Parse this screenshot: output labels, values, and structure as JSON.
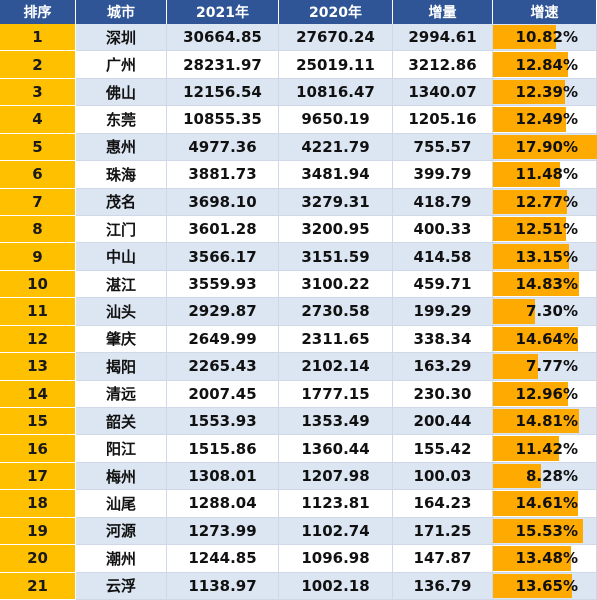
{
  "chart_data": {
    "type": "table",
    "columns": [
      "排序",
      "城市",
      "2021年",
      "2020年",
      "增量",
      "增速"
    ],
    "rows": [
      {
        "rank": "1",
        "city": "深圳",
        "v2021": "30664.85",
        "v2020": "27670.24",
        "increase": "2994.61",
        "growth": "10.82%",
        "growth_value": 10.82
      },
      {
        "rank": "2",
        "city": "广州",
        "v2021": "28231.97",
        "v2020": "25019.11",
        "increase": "3212.86",
        "growth": "12.84%",
        "growth_value": 12.84
      },
      {
        "rank": "3",
        "city": "佛山",
        "v2021": "12156.54",
        "v2020": "10816.47",
        "increase": "1340.07",
        "growth": "12.39%",
        "growth_value": 12.39
      },
      {
        "rank": "4",
        "city": "东莞",
        "v2021": "10855.35",
        "v2020": "9650.19",
        "increase": "1205.16",
        "growth": "12.49%",
        "growth_value": 12.49
      },
      {
        "rank": "5",
        "city": "惠州",
        "v2021": "4977.36",
        "v2020": "4221.79",
        "increase": "755.57",
        "growth": "17.90%",
        "growth_value": 17.9
      },
      {
        "rank": "6",
        "city": "珠海",
        "v2021": "3881.73",
        "v2020": "3481.94",
        "increase": "399.79",
        "growth": "11.48%",
        "growth_value": 11.48
      },
      {
        "rank": "7",
        "city": "茂名",
        "v2021": "3698.10",
        "v2020": "3279.31",
        "increase": "418.79",
        "growth": "12.77%",
        "growth_value": 12.77
      },
      {
        "rank": "8",
        "city": "江门",
        "v2021": "3601.28",
        "v2020": "3200.95",
        "increase": "400.33",
        "growth": "12.51%",
        "growth_value": 12.51
      },
      {
        "rank": "9",
        "city": "中山",
        "v2021": "3566.17",
        "v2020": "3151.59",
        "increase": "414.58",
        "growth": "13.15%",
        "growth_value": 13.15
      },
      {
        "rank": "10",
        "city": "湛江",
        "v2021": "3559.93",
        "v2020": "3100.22",
        "increase": "459.71",
        "growth": "14.83%",
        "growth_value": 14.83
      },
      {
        "rank": "11",
        "city": "汕头",
        "v2021": "2929.87",
        "v2020": "2730.58",
        "increase": "199.29",
        "growth": "7.30%",
        "growth_value": 7.3
      },
      {
        "rank": "12",
        "city": "肇庆",
        "v2021": "2649.99",
        "v2020": "2311.65",
        "increase": "338.34",
        "growth": "14.64%",
        "growth_value": 14.64
      },
      {
        "rank": "13",
        "city": "揭阳",
        "v2021": "2265.43",
        "v2020": "2102.14",
        "increase": "163.29",
        "growth": "7.77%",
        "growth_value": 7.77
      },
      {
        "rank": "14",
        "city": "清远",
        "v2021": "2007.45",
        "v2020": "1777.15",
        "increase": "230.30",
        "growth": "12.96%",
        "growth_value": 12.96
      },
      {
        "rank": "15",
        "city": "韶关",
        "v2021": "1553.93",
        "v2020": "1353.49",
        "increase": "200.44",
        "growth": "14.81%",
        "growth_value": 14.81
      },
      {
        "rank": "16",
        "city": "阳江",
        "v2021": "1515.86",
        "v2020": "1360.44",
        "increase": "155.42",
        "growth": "11.42%",
        "growth_value": 11.42
      },
      {
        "rank": "17",
        "city": "梅州",
        "v2021": "1308.01",
        "v2020": "1207.98",
        "increase": "100.03",
        "growth": "8.28%",
        "growth_value": 8.28
      },
      {
        "rank": "18",
        "city": "汕尾",
        "v2021": "1288.04",
        "v2020": "1123.81",
        "increase": "164.23",
        "growth": "14.61%",
        "growth_value": 14.61
      },
      {
        "rank": "19",
        "city": "河源",
        "v2021": "1273.99",
        "v2020": "1102.74",
        "increase": "171.25",
        "growth": "15.53%",
        "growth_value": 15.53
      },
      {
        "rank": "20",
        "city": "潮州",
        "v2021": "1244.85",
        "v2020": "1096.98",
        "increase": "147.87",
        "growth": "13.48%",
        "growth_value": 13.48
      },
      {
        "rank": "21",
        "city": "云浮",
        "v2021": "1138.97",
        "v2020": "1002.18",
        "increase": "136.79",
        "growth": "13.65%",
        "growth_value": 13.65
      }
    ],
    "growth_bar_max": 17.9
  },
  "colors": {
    "header_bg": "#2f5597",
    "rank_bg": "#ffc000",
    "bar": "#ffaa00",
    "stripe": "#dce6f2"
  }
}
